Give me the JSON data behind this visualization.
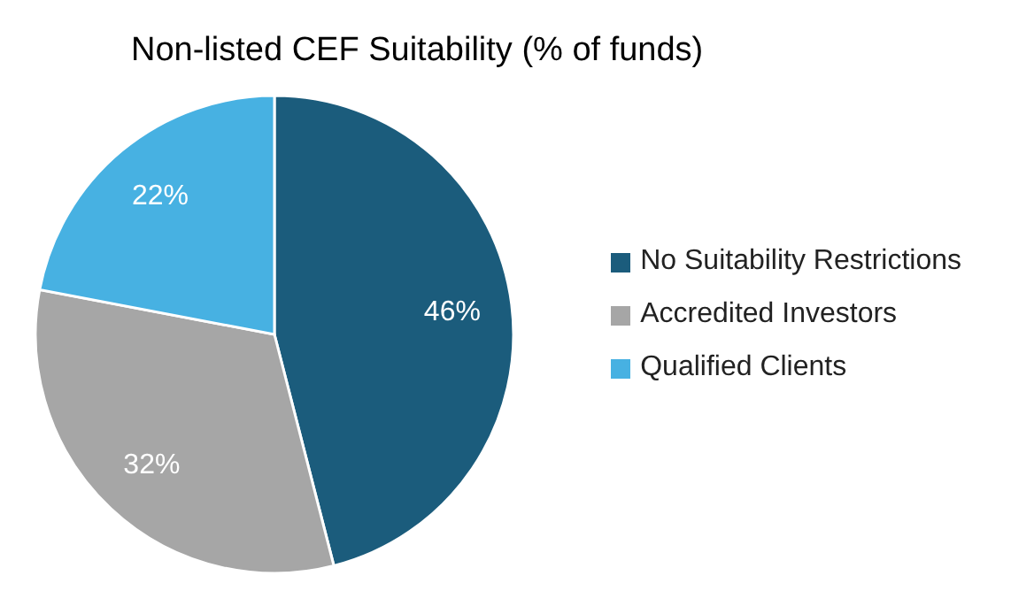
{
  "chart_data": {
    "type": "pie",
    "title": "Non-listed CEF Suitability (% of funds)",
    "categories": [
      "No Suitability Restrictions",
      "Accredited Investors",
      "Qualified Clients"
    ],
    "values": [
      46,
      32,
      22
    ],
    "colors": [
      "#1b5c7c",
      "#a6a6a6",
      "#47b1e2"
    ],
    "value_labels": [
      "46%",
      "32%",
      "22%"
    ],
    "legend": "right"
  }
}
